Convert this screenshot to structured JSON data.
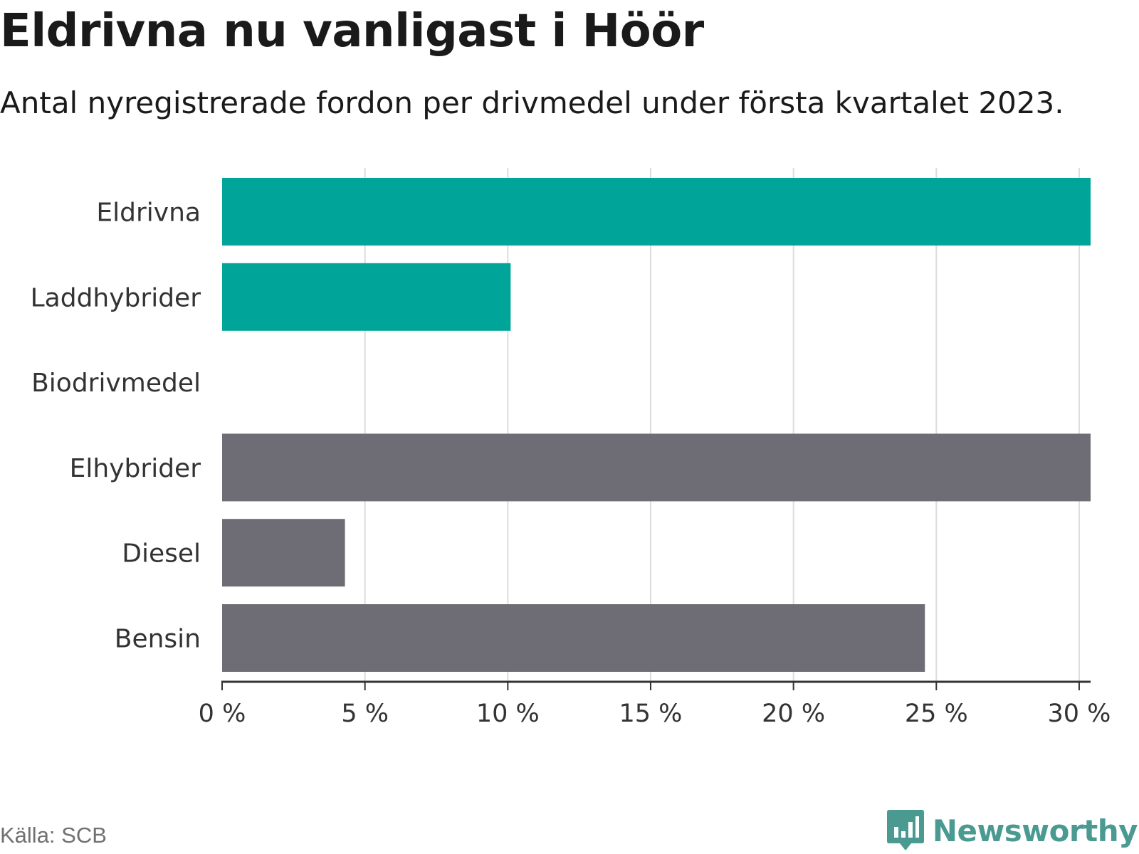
{
  "header": {
    "title": "Eldrivna nu vanligast i Höör",
    "subtitle": "Antal nyregistrerade fordon per drivmedel under första kvartalet 2023."
  },
  "footer": {
    "source": "Källa: SCB",
    "brand": "Newsworthy"
  },
  "colors": {
    "highlight": "#00a499",
    "muted": "#6e6d75",
    "grid": "#dcdcdc",
    "axis": "#333333"
  },
  "chart_data": {
    "type": "bar",
    "orientation": "horizontal",
    "categories": [
      "Eldrivna",
      "Laddhybrider",
      "Biodrivmedel",
      "Elhybrider",
      "Diesel",
      "Bensin"
    ],
    "values": [
      30.4,
      10.1,
      0,
      30.4,
      4.3,
      24.6
    ],
    "bar_colors": [
      "#00a499",
      "#00a499",
      "#00a499",
      "#6e6d75",
      "#6e6d75",
      "#6e6d75"
    ],
    "xlim": [
      0,
      30.4
    ],
    "xticks": [
      0,
      5,
      10,
      15,
      20,
      25,
      30
    ],
    "xtick_labels": [
      "0 %",
      "5 %",
      "10 %",
      "15 %",
      "20 %",
      "25 %",
      "30 %"
    ],
    "grid": true,
    "legend": false
  }
}
